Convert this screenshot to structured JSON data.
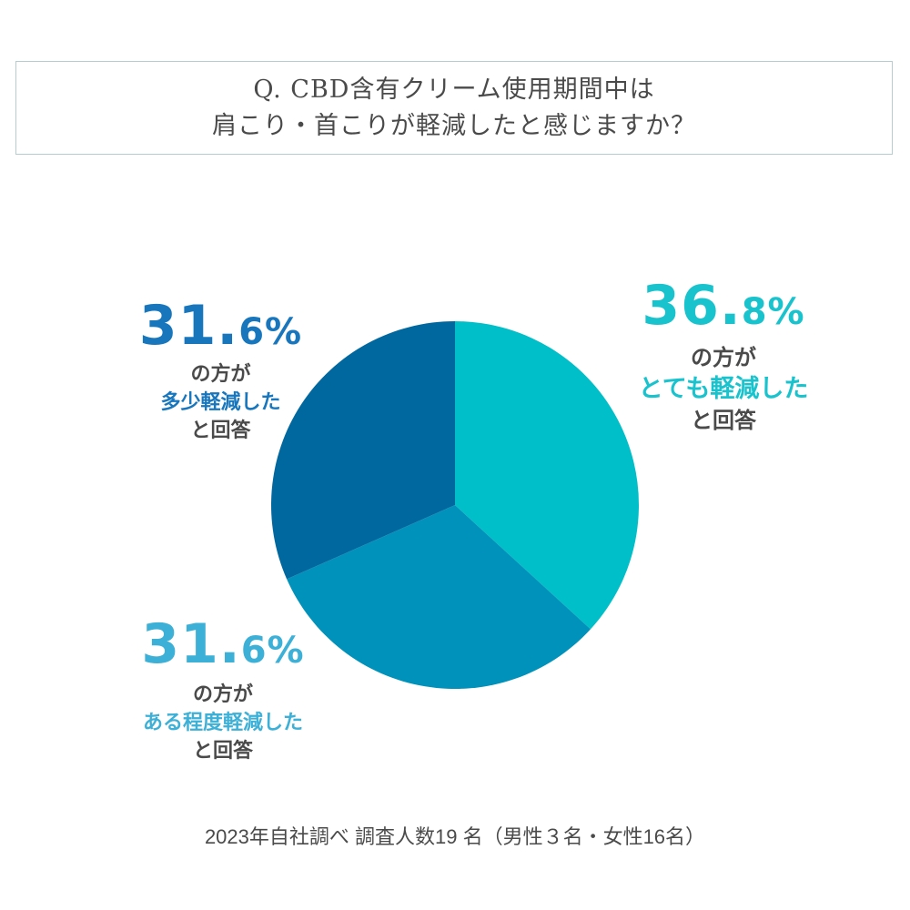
{
  "title": {
    "line1": "Q. CBD含有クリーム使用期間中は",
    "line2": "肩こり・首こりが軽減したと感じますか？"
  },
  "chart_data": {
    "type": "pie",
    "slices": [
      {
        "value": 36.8,
        "pct_int": "36",
        "pct_dec": "8%",
        "line1": "の方が",
        "line2": "とても軽減した",
        "line3": "と回答",
        "color": "#00bfc8"
      },
      {
        "value": 31.6,
        "pct_int": "31",
        "pct_dec": "6%",
        "line1": "の方が",
        "line2": "ある程度軽減した",
        "line3": "と回答",
        "color": "#0092ba"
      },
      {
        "value": 31.6,
        "pct_int": "31",
        "pct_dec": "6%",
        "line1": "の方が",
        "line2": "多少軽減した",
        "line3": "と回答",
        "color": "#00689f"
      }
    ],
    "label_colors": [
      "#19c3cd",
      "#3cb0d6",
      "#1876bd"
    ],
    "text_color": "#4a4a4a"
  },
  "footer": "2023年自社調べ 調査人数19 名（男性３名・女性16名）"
}
